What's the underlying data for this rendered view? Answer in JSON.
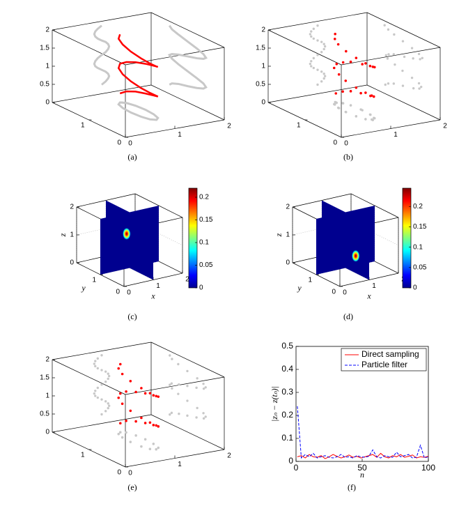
{
  "chart_data": [
    {
      "type": "line3d",
      "caption": "(a)",
      "color": "#ff0000",
      "projection_color": "#c8c8c8",
      "x": [
        1,
        1.08,
        1.13,
        1.15,
        1.13,
        1.08,
        1,
        0.92,
        0.87,
        0.85,
        0.87,
        0.92,
        1,
        1.08,
        1.13,
        1.15,
        1.13,
        1.08,
        1,
        0.92,
        0.87,
        0.85,
        0.87,
        0.92,
        1
      ],
      "y": [
        1.5,
        1.43,
        1.25,
        1.0,
        0.75,
        0.57,
        0.5,
        0.57,
        0.75,
        1.0,
        1.25,
        1.43,
        1.5,
        1.43,
        1.25,
        1.0,
        0.75,
        0.57,
        0.5,
        0.57,
        0.75,
        1.0,
        1.25,
        1.43,
        1.5
      ],
      "z": [
        0.25,
        0.32,
        0.39,
        0.45,
        0.52,
        0.59,
        0.66,
        0.73,
        0.79,
        0.86,
        0.93,
        1.0,
        1.07,
        1.13,
        1.2,
        1.27,
        1.34,
        1.41,
        1.47,
        1.54,
        1.61,
        1.68,
        1.75,
        1.81,
        1.88
      ],
      "xlim": [
        0,
        2
      ],
      "ylim": [
        0,
        2
      ],
      "zlim": [
        0,
        2
      ],
      "xticks": [
        0,
        1,
        2
      ],
      "yticks": [
        0,
        1
      ],
      "zticks": [
        0,
        0.5,
        1,
        1.5,
        2
      ]
    },
    {
      "type": "scatter3d",
      "caption": "(b)",
      "color": "#ff0000",
      "projection_color": "#c8c8c8",
      "x": [
        1,
        1.08,
        1.13,
        1.15,
        1.13,
        1.08,
        1,
        0.92,
        0.87,
        0.85,
        0.87,
        0.92,
        1,
        1.08,
        1.13,
        1.15,
        1.13,
        1.08,
        1,
        0.92,
        0.87,
        0.85,
        0.87,
        0.92,
        1
      ],
      "y": [
        1.5,
        1.42,
        1.27,
        1.02,
        0.73,
        0.57,
        0.52,
        0.58,
        0.77,
        1.03,
        1.24,
        1.44,
        1.48,
        1.41,
        1.27,
        0.98,
        0.74,
        0.55,
        0.49,
        0.58,
        0.77,
        1.02,
        1.26,
        1.42,
        1.52
      ],
      "z": [
        0.25,
        0.32,
        0.39,
        0.45,
        0.52,
        0.59,
        0.66,
        0.73,
        0.79,
        0.86,
        0.93,
        1.0,
        1.07,
        1.13,
        1.2,
        1.27,
        1.34,
        1.41,
        1.47,
        1.54,
        1.61,
        1.68,
        1.75,
        1.81,
        1.88
      ],
      "xlim": [
        0,
        2
      ],
      "ylim": [
        0,
        2
      ],
      "zlim": [
        0,
        2
      ],
      "xticks": [
        0,
        1,
        2
      ],
      "yticks": [
        0,
        1
      ],
      "zticks": [
        0,
        0.5,
        1,
        1.5,
        2
      ]
    },
    {
      "type": "slice3d",
      "caption": "(c)",
      "slice_color": "#00008f",
      "xlabel": "x",
      "ylabel": "y",
      "zlabel": "z",
      "xlim": [
        0,
        2
      ],
      "ylim": [
        0,
        2
      ],
      "zlim": [
        0,
        2
      ],
      "xticks": [
        0,
        1,
        2
      ],
      "yticks": [
        0,
        1
      ],
      "zticks": [
        0,
        1,
        2
      ],
      "grid": true,
      "peak": {
        "x": 0.9,
        "y": 1,
        "z": 1.25,
        "value": 0.22
      },
      "clim": [
        0,
        0.22
      ],
      "cticks": [
        0,
        0.05,
        0.1,
        0.15,
        0.2
      ]
    },
    {
      "type": "slice3d",
      "caption": "(d)",
      "slice_color": "#00008f",
      "xlabel": "x",
      "ylabel": "y",
      "zlabel": "z",
      "xlim": [
        0,
        2
      ],
      "ylim": [
        0,
        2
      ],
      "zlim": [
        0,
        2
      ],
      "xticks": [
        0,
        1,
        2
      ],
      "yticks": [
        0,
        1
      ],
      "zticks": [
        0,
        1,
        2
      ],
      "grid": true,
      "peak": {
        "x": 1.35,
        "y": 1,
        "z": 0.35,
        "value": 0.245
      },
      "clim": [
        0,
        0.245
      ],
      "cticks": [
        0,
        0.05,
        0.1,
        0.15,
        0.2
      ]
    },
    {
      "type": "scatter3d",
      "caption": "(e)",
      "color": "#ff0000",
      "projection_color": "#c8c8c8",
      "x": [
        1,
        1.08,
        1.13,
        1.15,
        1.13,
        1.08,
        1,
        0.92,
        0.87,
        0.85,
        0.87,
        0.92,
        1,
        1.08,
        1.13,
        1.15,
        1.13,
        1.08,
        1,
        0.92,
        0.87,
        0.85,
        0.87,
        0.92,
        1
      ],
      "y": [
        1.49,
        1.44,
        1.24,
        1.01,
        0.76,
        0.56,
        0.51,
        0.57,
        0.74,
        1.01,
        1.26,
        1.43,
        1.49,
        1.44,
        1.24,
        1.01,
        0.76,
        0.56,
        0.51,
        0.57,
        0.74,
        1.01,
        1.26,
        1.43,
        1.49
      ],
      "z": [
        0.25,
        0.32,
        0.39,
        0.45,
        0.52,
        0.59,
        0.66,
        0.73,
        0.79,
        0.86,
        0.93,
        1.0,
        1.07,
        1.13,
        1.2,
        1.27,
        1.34,
        1.41,
        1.47,
        1.54,
        1.61,
        1.68,
        1.75,
        1.81,
        1.88
      ],
      "xlim": [
        0,
        2
      ],
      "ylim": [
        0,
        2
      ],
      "zlim": [
        0,
        2
      ],
      "xticks": [
        0,
        1,
        2
      ],
      "yticks": [
        0,
        1
      ],
      "zticks": [
        0,
        0.5,
        1,
        1.5,
        2
      ]
    },
    {
      "type": "line",
      "caption": "(f)",
      "xlabel": "n",
      "ylabel": "|zₙ − z(tₙ)|",
      "legend": "upper right",
      "x": [
        1,
        4,
        7,
        10,
        13,
        16,
        19,
        22,
        25,
        28,
        31,
        34,
        37,
        40,
        43,
        46,
        49,
        52,
        55,
        58,
        61,
        64,
        67,
        70,
        73,
        76,
        79,
        82,
        85,
        88,
        91,
        94,
        97,
        100
      ],
      "series": [
        {
          "name": "Direct sampling",
          "color": "#ff0000",
          "dash": false,
          "values": [
            0.02,
            0.025,
            0.015,
            0.03,
            0.02,
            0.018,
            0.025,
            0.012,
            0.02,
            0.03,
            0.022,
            0.015,
            0.02,
            0.028,
            0.018,
            0.022,
            0.015,
            0.02,
            0.025,
            0.03,
            0.018,
            0.035,
            0.02,
            0.015,
            0.025,
            0.02,
            0.03,
            0.018,
            0.022,
            0.028,
            0.015,
            0.02,
            0.018,
            0.022
          ]
        },
        {
          "name": "Particle filter",
          "color": "#0000ff",
          "dash": true,
          "values": [
            0.24,
            0.015,
            0.03,
            0.02,
            0.035,
            0.015,
            0.02,
            0.025,
            0.018,
            0.015,
            0.02,
            0.03,
            0.018,
            0.02,
            0.015,
            0.025,
            0.02,
            0.018,
            0.022,
            0.05,
            0.02,
            0.015,
            0.025,
            0.02,
            0.018,
            0.04,
            0.02,
            0.025,
            0.03,
            0.015,
            0.018,
            0.07,
            0.015,
            0.02
          ]
        }
      ],
      "xlim": [
        0,
        100
      ],
      "ylim": [
        0,
        0.5
      ],
      "xticks": [
        0,
        50,
        100
      ],
      "yticks": [
        0,
        0.1,
        0.2,
        0.3,
        0.4,
        0.5
      ]
    }
  ]
}
